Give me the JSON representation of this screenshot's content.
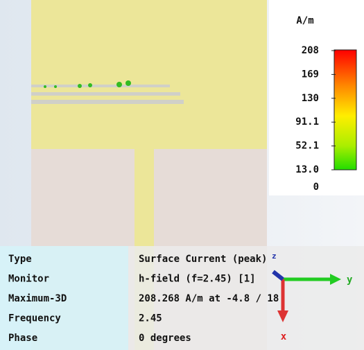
{
  "legend": {
    "unit": "A/m",
    "ticks": [
      "208",
      "169",
      "130",
      "91.1",
      "52.1",
      "13.0",
      "0"
    ]
  },
  "info": {
    "rows": [
      [
        "Type",
        "Surface Current (peak)"
      ],
      [
        "Monitor",
        "h-field (f=2.45) [1]"
      ],
      [
        "Maximum-3D",
        "208.268 A/m at -4.8 / 18"
      ],
      [
        "Frequency",
        "2.45"
      ],
      [
        "Phase",
        "0 degrees"
      ]
    ]
  },
  "axes": {
    "x": "x",
    "y": "y",
    "z": "z"
  }
}
